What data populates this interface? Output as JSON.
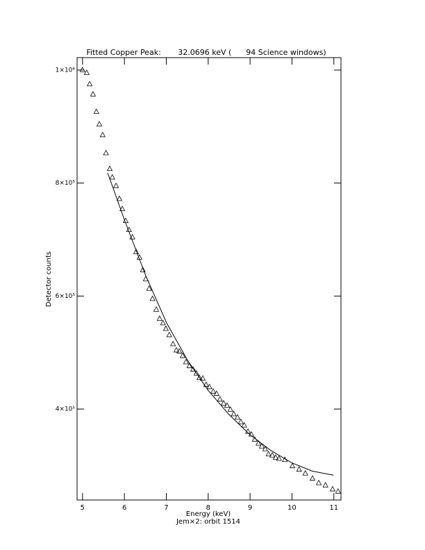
{
  "chart_data": {
    "type": "scatter",
    "title": "Fitted Copper Peak:       32.0696 keV (      94 Science windows)",
    "x_label": "Energy (keV)",
    "y_label": "Detector counts",
    "footer": "Jem×2: orbit 1514",
    "xlim": [
      4.87,
      11.17
    ],
    "xticks": [
      5,
      6,
      7,
      8,
      9,
      10,
      11
    ],
    "ylim": [
      239000,
      1022000
    ],
    "yticks": [
      {
        "value": 400000,
        "label": "4×10⁵"
      },
      {
        "value": 600000,
        "label": "6×10⁵"
      },
      {
        "value": 800000,
        "label": "8×10⁵"
      },
      {
        "value": 1000000,
        "label": "1×10⁶"
      }
    ],
    "color": "#000000",
    "series": [
      {
        "style": "triangle",
        "x": [
          5.0,
          5.1,
          5.17,
          5.25,
          5.33,
          5.4,
          5.48,
          5.56,
          5.65,
          5.71,
          5.8,
          5.88,
          5.95,
          6.03,
          6.11,
          6.19,
          6.28,
          6.36,
          6.44,
          6.51,
          6.59,
          6.67,
          6.76,
          6.84,
          6.92,
          6.99,
          7.07,
          7.16,
          7.24,
          7.31,
          7.39,
          7.47,
          7.55,
          7.64,
          7.72,
          7.79,
          7.87,
          7.95,
          8.03,
          8.12,
          8.2,
          8.28,
          8.37,
          8.45,
          8.53,
          8.61,
          8.7,
          8.78,
          8.86,
          8.95,
          9.03,
          9.11,
          9.2,
          9.28,
          9.36,
          9.44,
          9.53,
          9.61,
          9.69,
          9.83,
          10.01,
          10.17,
          10.32,
          10.49,
          10.64,
          10.8,
          10.97,
          11.1
        ],
        "values": [
          1000000,
          995000,
          975000,
          957000,
          926000,
          904000,
          885000,
          853000,
          825000,
          810000,
          795000,
          772000,
          754000,
          733000,
          717000,
          704000,
          678000,
          668000,
          646000,
          630000,
          613000,
          595000,
          576000,
          560000,
          552000,
          542000,
          531000,
          515000,
          504000,
          502000,
          494000,
          483000,
          476000,
          470000,
          463000,
          455000,
          454000,
          443000,
          439000,
          431000,
          427000,
          417000,
          410000,
          406000,
          399000,
          391000,
          385000,
          377000,
          371000,
          360000,
          355000,
          346000,
          339000,
          334000,
          329000,
          320000,
          318000,
          314000,
          312000,
          310000,
          299000,
          293000,
          286000,
          277000,
          269000,
          265000,
          258000,
          254000
        ]
      },
      {
        "style": "line",
        "x": [
          5.6,
          6.01,
          6.51,
          7.01,
          7.51,
          8.0,
          8.5,
          8.99,
          9.49,
          9.99,
          10.49,
          10.99
        ],
        "values": [
          818000,
          733000,
          636000,
          552000,
          486000,
          433000,
          390000,
          355000,
          327000,
          305000,
          290000,
          283000
        ]
      }
    ]
  }
}
